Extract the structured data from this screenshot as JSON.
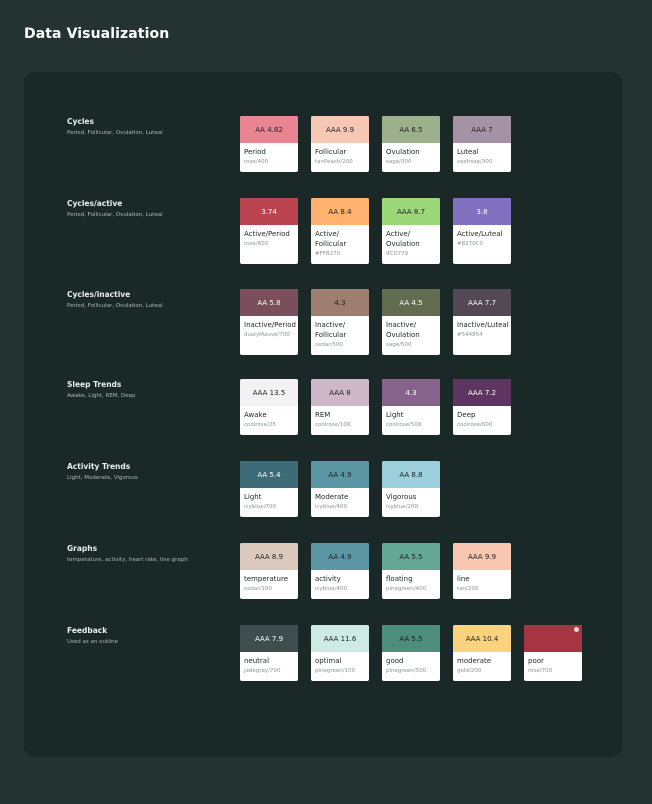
{
  "page": {
    "title": "Data Visualization"
  },
  "sections": [
    {
      "title": "Cycles",
      "subtitle": "Period, Follicular, Ovulation, Luteal",
      "cards": [
        {
          "badge": "AA 4.82",
          "name": "Period",
          "token": "rose/400",
          "color": "#E98492",
          "text": "dark"
        },
        {
          "badge": "AAA 9.9",
          "name": "Follicular",
          "token": "tanPeach/200",
          "color": "#F6C7B2",
          "text": "dark"
        },
        {
          "badge": "AA 6.5",
          "name": "Ovulation",
          "token": "sage/300",
          "color": "#9CB08C",
          "text": "dark"
        },
        {
          "badge": "AAA 7",
          "name": "Luteal",
          "token": "coolrose/300",
          "color": "#A592A4",
          "text": "dark"
        }
      ]
    },
    {
      "title": "Cycles/active",
      "subtitle": "Period, Follicular, Ovulation, Luteal",
      "cards": [
        {
          "badge": "3.74",
          "name": "Active/Period",
          "token": "rose/600",
          "color": "#B9444F",
          "text": "light"
        },
        {
          "badge": "AA 8.4",
          "name": "Active/ Follicular",
          "token": "#FFB270",
          "color": "#FFB270",
          "text": "dark"
        },
        {
          "badge": "AAA 8.7",
          "name": "Active/ Ovulation",
          "token": "9CD779",
          "color": "#9CD779",
          "text": "dark"
        },
        {
          "badge": "3.8",
          "name": "Active/Luteal",
          "token": "#8270C0",
          "color": "#8270C0",
          "text": "light"
        }
      ]
    },
    {
      "title": "Cycles/inactive",
      "subtitle": "Period, Follicular, Ovulation, Luteal",
      "cards": [
        {
          "badge": "AA 5.8",
          "name": "Inactive/Period",
          "token": "dustyMauve/700",
          "color": "#7A4E5A",
          "text": "light"
        },
        {
          "badge": "4.3",
          "name": "Inactive/ Follicular",
          "token": "cedar/500",
          "color": "#9E7E6E",
          "text": "dark"
        },
        {
          "badge": "AA 4.5",
          "name": "Inactive/ Ovulation",
          "token": "sage/500",
          "color": "#636C50",
          "text": "light"
        },
        {
          "badge": "AAA 7.7",
          "name": "Inactive/Luteal",
          "token": "#544854",
          "color": "#544854",
          "text": "light"
        }
      ]
    },
    {
      "title": "Sleep Trends",
      "subtitle": "Awake, Light, REM, Deep",
      "cards": [
        {
          "badge": "AAA 13.5",
          "name": "Awake",
          "token": "coolrose/25",
          "color": "#F4F1F4",
          "text": "dark"
        },
        {
          "badge": "AAA 8",
          "name": "REM",
          "token": "coolrose/100",
          "color": "#CDB8C8",
          "text": "dark"
        },
        {
          "badge": "4.3",
          "name": "Light",
          "token": "coolrose/500",
          "color": "#85638A",
          "text": "light"
        },
        {
          "badge": "AAA 7.2",
          "name": "Deep",
          "token": "coolrose/600",
          "color": "#5E3561",
          "text": "light"
        }
      ]
    },
    {
      "title": "Activity Trends",
      "subtitle": "Light, Moderate, Vigorous",
      "cards": [
        {
          "badge": "AA 5.4",
          "name": "Light",
          "token": "icyblue/700",
          "color": "#3D6C78",
          "text": "light"
        },
        {
          "badge": "AA 4.9",
          "name": "Moderate",
          "token": "icyblue/400",
          "color": "#5A96A3",
          "text": "dark"
        },
        {
          "badge": "AA 8.8",
          "name": "Vigorous",
          "token": "icyblue/200",
          "color": "#9BCFDC",
          "text": "dark"
        }
      ]
    },
    {
      "title": "Graphs",
      "subtitle": "temperature, activity, heart rate, line graph",
      "cards": [
        {
          "badge": "AAA 8.9",
          "name": "temperature",
          "token": "cedar/100",
          "color": "#DCC9BE",
          "text": "dark"
        },
        {
          "badge": "AA 4.9",
          "name": "activity",
          "token": "icyblue/400",
          "color": "#5A96A3",
          "text": "dark"
        },
        {
          "badge": "AA 5.5",
          "name": "floating",
          "token": "pinegreen/400",
          "color": "#64A894",
          "text": "dark"
        },
        {
          "badge": "AAA 9.9",
          "name": "line",
          "token": "tan/200",
          "color": "#F7C7B1",
          "text": "dark"
        }
      ]
    },
    {
      "title": "Feedback",
      "subtitle": "Used as an outline",
      "cards": [
        {
          "badge": "AAA 7.9",
          "name": "neutral",
          "token": "jadegray/700",
          "color": "#3E4E4E",
          "text": "light"
        },
        {
          "badge": "AAA 11.6",
          "name": "optimal",
          "token": "pinegreen/100",
          "color": "#CDEBE3",
          "text": "dark"
        },
        {
          "badge": "AA 5.5",
          "name": "good",
          "token": "pinegreen/500",
          "color": "#4C8E7A",
          "text": "dark"
        },
        {
          "badge": "AAA 10.4",
          "name": "moderate",
          "token": "gold/200",
          "color": "#FBD37F",
          "text": "dark"
        },
        {
          "badge": "",
          "name": "poor",
          "token": "rose/700",
          "color": "#A73442",
          "text": "light",
          "dot": true
        }
      ]
    }
  ]
}
